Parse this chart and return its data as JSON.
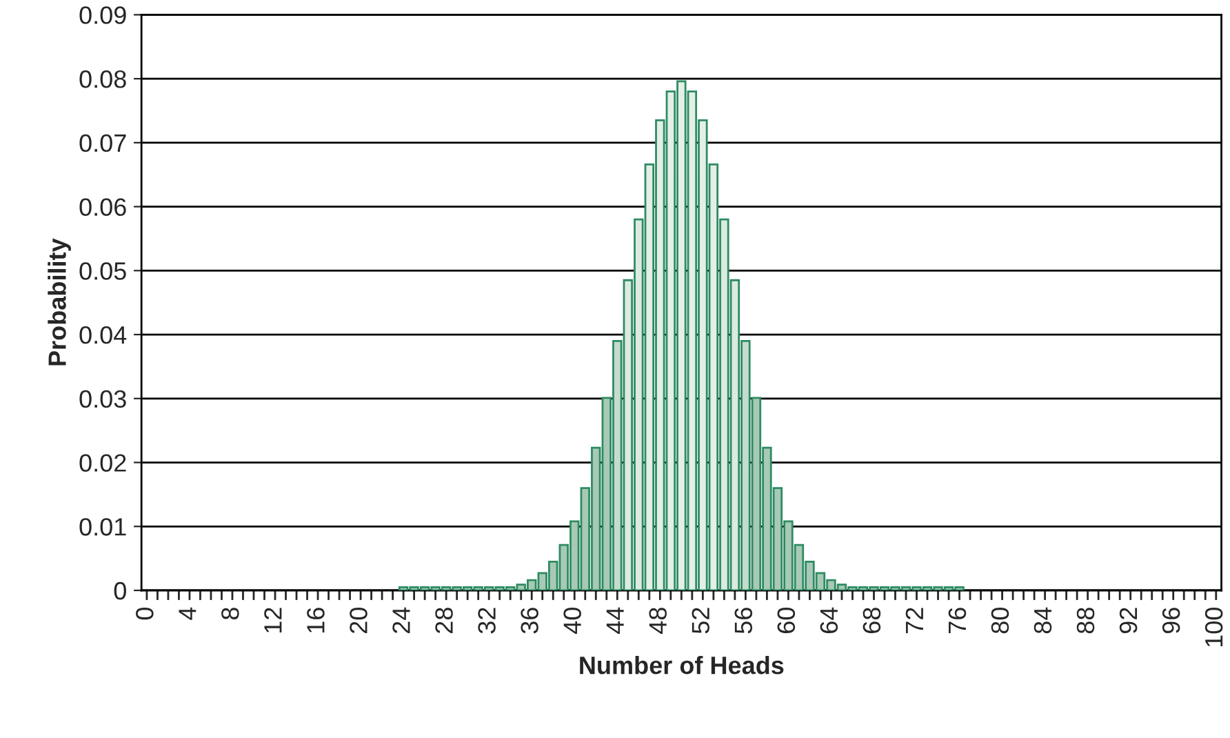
{
  "chart_data": {
    "type": "bar",
    "xlabel": "Number of Heads",
    "ylabel": "Probability",
    "categories": [
      "0",
      null,
      null,
      null,
      "4",
      null,
      null,
      null,
      "8",
      null,
      null,
      null,
      "12",
      null,
      null,
      null,
      "16",
      null,
      null,
      null,
      "20",
      null,
      null,
      null,
      "24",
      null,
      null,
      null,
      "28",
      null,
      null,
      null,
      "32",
      null,
      null,
      null,
      "36",
      null,
      null,
      null,
      "40",
      null,
      null,
      null,
      "44",
      null,
      null,
      null,
      "48",
      null,
      null,
      null,
      "52",
      null,
      null,
      null,
      "56",
      null,
      null,
      null,
      "60",
      null,
      null,
      null,
      "64",
      null,
      null,
      null,
      "68",
      null,
      null,
      null,
      "72",
      null,
      null,
      null,
      "76",
      null,
      null,
      null,
      "80",
      null,
      null,
      null,
      "84",
      null,
      null,
      null,
      "88",
      null,
      null,
      null,
      "92",
      null,
      null,
      null,
      "96",
      null,
      null,
      null,
      "100"
    ],
    "values": [
      0,
      0,
      0,
      0,
      0,
      0,
      0,
      0,
      0,
      0,
      0,
      0,
      0,
      0,
      0,
      0,
      0,
      0,
      0,
      0,
      0,
      0,
      0,
      0,
      0.0005,
      0.0005,
      0.0005,
      0.0005,
      0.0005,
      0.0005,
      0.0005,
      0.0005,
      0.0005,
      0.0005,
      0.0005,
      0.0009,
      0.0016,
      0.0027,
      0.0045,
      0.0071,
      0.0108,
      0.016,
      0.0223,
      0.0301,
      0.039,
      0.0485,
      0.058,
      0.0666,
      0.0735,
      0.078,
      0.0796,
      0.078,
      0.0735,
      0.0666,
      0.058,
      0.0485,
      0.039,
      0.0301,
      0.0223,
      0.016,
      0.0108,
      0.0071,
      0.0045,
      0.0027,
      0.0016,
      0.0009,
      0.0005,
      0.0005,
      0.0005,
      0.0005,
      0.0005,
      0.0005,
      0.0005,
      0.0005,
      0.0005,
      0.0005,
      0.0005,
      0,
      0,
      0,
      0,
      0,
      0,
      0,
      0,
      0,
      0,
      0,
      0,
      0,
      0,
      0,
      0,
      0,
      0,
      0,
      0,
      0,
      0,
      0,
      0
    ],
    "colors": [
      "#a8c9b5",
      "#a8c9b5",
      "#a8c9b5",
      "#a8c9b5",
      "#a8c9b5",
      "#a8c9b5",
      "#a8c9b5",
      "#a8c9b5",
      "#a8c9b5",
      "#a8c9b5",
      "#a8c9b5",
      "#a8c9b5",
      "#a8c9b5",
      "#a8c9b5",
      "#a8c9b5",
      "#a8c9b5",
      "#a8c9b5",
      "#a8c9b5",
      "#a8c9b5",
      "#a8c9b5",
      "#a8c9b5",
      "#a8c9b5",
      "#a8c9b5",
      "#a8c9b5",
      "#a8c9b5",
      "#a8c9b5",
      "#a8c9b5",
      "#a8c9b5",
      "#a8c9b5",
      "#a8c9b5",
      "#a8c9b5",
      "#a8c9b5",
      "#a8c9b5",
      "#a8c9b5",
      "#a8c9b5",
      "#a8c9b5",
      "#a8c9b5",
      "#a8c9b5",
      "#a8c9b5",
      "#a8c9b5",
      "#a8c9b5",
      "#a8c9b5",
      "#a8c9b5",
      "#a8c9b5",
      "#c4dccd",
      "#dcebe1",
      "#dcebe1",
      "#e3efe7",
      "#e3efe7",
      "#e3efe7",
      "#e3efe7",
      "#e3efe7",
      "#e3efe7",
      "#e3efe7",
      "#dcebe1",
      "#dcebe1",
      "#c4dccd",
      "#a8c9b5",
      "#a8c9b5",
      "#a8c9b5",
      "#a8c9b5",
      "#a8c9b5",
      "#a8c9b5",
      "#a8c9b5",
      "#a8c9b5",
      "#a8c9b5",
      "#a8c9b5",
      "#a8c9b5",
      "#a8c9b5",
      "#a8c9b5",
      "#a8c9b5",
      "#a8c9b5",
      "#a8c9b5",
      "#a8c9b5",
      "#a8c9b5",
      "#a8c9b5",
      "#a8c9b5",
      "#a8c9b5",
      "#a8c9b5",
      "#a8c9b5",
      "#a8c9b5",
      "#a8c9b5",
      "#a8c9b5",
      "#a8c9b5",
      "#a8c9b5",
      "#a8c9b5",
      "#a8c9b5",
      "#a8c9b5",
      "#a8c9b5",
      "#a8c9b5",
      "#a8c9b5",
      "#a8c9b5",
      "#a8c9b5",
      "#a8c9b5",
      "#a8c9b5",
      "#a8c9b5",
      "#a8c9b5",
      "#a8c9b5",
      "#a8c9b5",
      "#a8c9b5",
      "#a8c9b5"
    ],
    "ylim": [
      0,
      0.09
    ],
    "yticks": [
      {
        "value": 0,
        "label": "0"
      },
      0.01,
      0.02,
      0.03,
      0.04,
      0.05,
      0.06,
      0.07,
      0.08,
      0.09
    ],
    "grid": "y"
  }
}
